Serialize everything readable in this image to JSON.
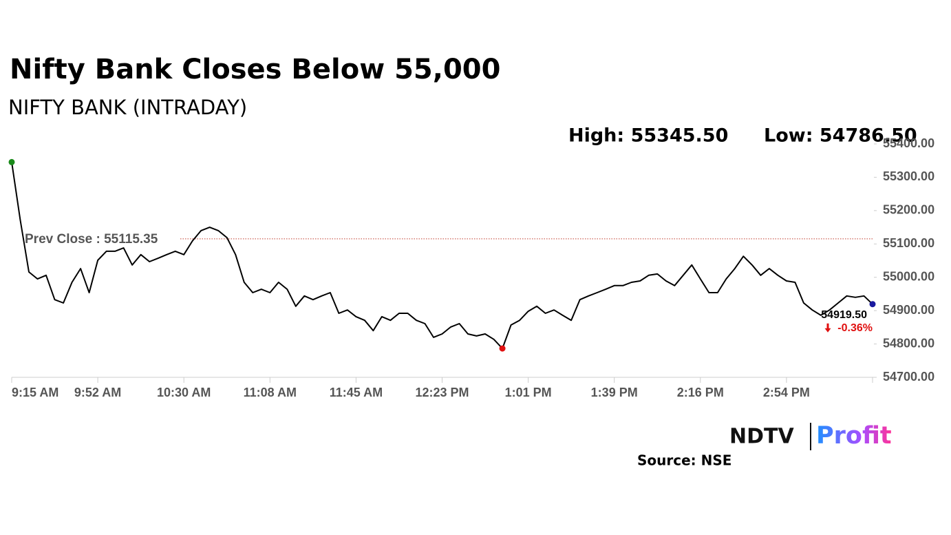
{
  "chart_data": {
    "type": "line",
    "title": "Nifty Bank Closes Below 55,000",
    "subtitle": "NIFTY BANK (INTRADAY)",
    "high_label": "High: 55345.50",
    "low_label": "Low: 54786.50",
    "categories": [
      "9:15 AM",
      null,
      null,
      null,
      null,
      null,
      null,
      null,
      null,
      null,
      "9:52 AM",
      null,
      null,
      null,
      null,
      null,
      null,
      null,
      null,
      null,
      "10:30 AM",
      null,
      null,
      null,
      null,
      null,
      null,
      null,
      null,
      null,
      "11:08 AM",
      null,
      null,
      null,
      null,
      null,
      null,
      null,
      null,
      null,
      "11:45 AM",
      null,
      null,
      null,
      null,
      null,
      null,
      null,
      null,
      null,
      "12:23 PM",
      null,
      null,
      null,
      null,
      null,
      null,
      null,
      null,
      null,
      "1:01 PM",
      null,
      null,
      null,
      null,
      null,
      null,
      null,
      null,
      null,
      "1:39 PM",
      null,
      null,
      null,
      null,
      null,
      null,
      null,
      null,
      null,
      "2:16 PM",
      null,
      null,
      null,
      null,
      null,
      null,
      null,
      null,
      null,
      "2:54 PM",
      null,
      null,
      null,
      null,
      null,
      null,
      null,
      null,
      null,
      null
    ],
    "series": [
      {
        "name": "NIFTY BANK",
        "color": "#000000",
        "values": [
          55345.5,
          55171,
          55016,
          54995,
          55006,
          54933,
          54923,
          54985,
          55026,
          54954,
          55051,
          55078,
          55078,
          55088,
          55037,
          55068,
          55047,
          55057,
          55068,
          55078,
          55068,
          55109,
          55140,
          55150,
          55140,
          55119,
          55068,
          54985,
          54954,
          54964,
          54954,
          54985,
          54964,
          54913,
          54944,
          54933,
          54944,
          54954,
          54892,
          54902,
          54882,
          54871,
          54840,
          54882,
          54871,
          54892,
          54892,
          54871,
          54861,
          54820,
          54830,
          54851,
          54861,
          54830,
          54824,
          54830,
          54814,
          54786.5,
          54857,
          54871,
          54898,
          54913,
          54892,
          54902,
          54886,
          54871,
          54933,
          54944,
          54954,
          54964,
          54975,
          54975,
          54985,
          54989,
          55006,
          55010,
          54989,
          54975,
          55006,
          55037,
          54995,
          54954,
          54954,
          54995,
          55026,
          55063,
          55037,
          55006,
          55026,
          55006,
          54989,
          54985,
          54923,
          54902,
          54886,
          54902,
          54923,
          54944,
          54940,
          54944,
          54919.5
        ]
      }
    ],
    "high_color": "#1a8a1a",
    "low_color": "#e01010",
    "close_color": "#1a1aa0",
    "end_label": "54919.50",
    "change_label": "-0.36%",
    "change_color": "#e01010",
    "prev_close": {
      "value": 55115.35,
      "label": "Prev Close : 55115.35"
    },
    "prev_close_color": "#c0392b",
    "ylim": [
      54700,
      55400
    ],
    "yticks": [
      {
        "value": 54700,
        "label": "54700.00"
      },
      {
        "value": 54800,
        "label": "54800.00"
      },
      {
        "value": 54900,
        "label": "54900.00"
      },
      {
        "value": 55000,
        "label": "55000.00"
      },
      {
        "value": 55100,
        "label": "55100.00"
      },
      {
        "value": 55200,
        "label": "55200.00"
      },
      {
        "value": 55300,
        "label": "55300.00"
      },
      {
        "value": 55400,
        "label": "55400.00"
      }
    ],
    "grid": false,
    "logo": [
      "NDTV",
      "Profit"
    ],
    "source": "Source: NSE"
  }
}
